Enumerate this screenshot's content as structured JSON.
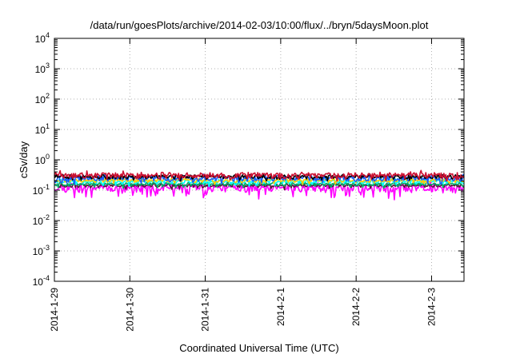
{
  "chart_data": {
    "type": "line",
    "title": "/data/run/goesPlots/archive/2014-02-03/10:00/flux/../bryn/5daysMoon.plot",
    "xlabel": "Coordinated Universal Time (UTC)",
    "ylabel": "cSv/day",
    "y_scale": "log",
    "ylim_exponents": [
      -4,
      4
    ],
    "y_tick_labels": [
      {
        "base": "10",
        "exp": "4"
      },
      {
        "base": "10",
        "exp": "3"
      },
      {
        "base": "10",
        "exp": "2"
      },
      {
        "base": "10",
        "exp": "1"
      },
      {
        "base": "10",
        "exp": "0"
      },
      {
        "base": "10",
        "exp": "-1"
      },
      {
        "base": "10",
        "exp": "-2"
      },
      {
        "base": "10",
        "exp": "-3"
      },
      {
        "base": "10",
        "exp": "-4"
      }
    ],
    "x_tick_labels": [
      "2014-1-29",
      "2014-1-30",
      "2014-1-31",
      "2014-2-1",
      "2014-2-2",
      "2014-2-3"
    ],
    "xlim_days": [
      0,
      5.43
    ],
    "grid": true,
    "series": [
      {
        "color": "#ff00ff",
        "level": 0.12,
        "amplitude": 0.16,
        "dip_bias": 0.35,
        "seed": 11
      },
      {
        "color": "#5a1a3a",
        "level": 0.145,
        "amplitude": 0.06,
        "dip_bias": 0.05,
        "seed": 23
      },
      {
        "color": "#00aa66",
        "level": 0.16,
        "amplitude": 0.06,
        "dip_bias": 0.05,
        "seed": 31
      },
      {
        "color": "#00ffff",
        "level": 0.195,
        "amplitude": 0.08,
        "dip_bias": 0.05,
        "seed": 47
      },
      {
        "color": "#ffcc00",
        "level": 0.21,
        "amplitude": 0.07,
        "dip_bias": 0.05,
        "seed": 53
      },
      {
        "color": "#1560ff",
        "level": 0.25,
        "amplitude": 0.12,
        "dip_bias": 0.05,
        "seed": 67
      },
      {
        "color": "#000000",
        "level": 0.28,
        "amplitude": 0.08,
        "dip_bias": 0.05,
        "seed": 71
      },
      {
        "color": "#cc1133",
        "level": 0.31,
        "amplitude": 0.13,
        "dip_bias": 0.05,
        "seed": 89
      }
    ]
  }
}
